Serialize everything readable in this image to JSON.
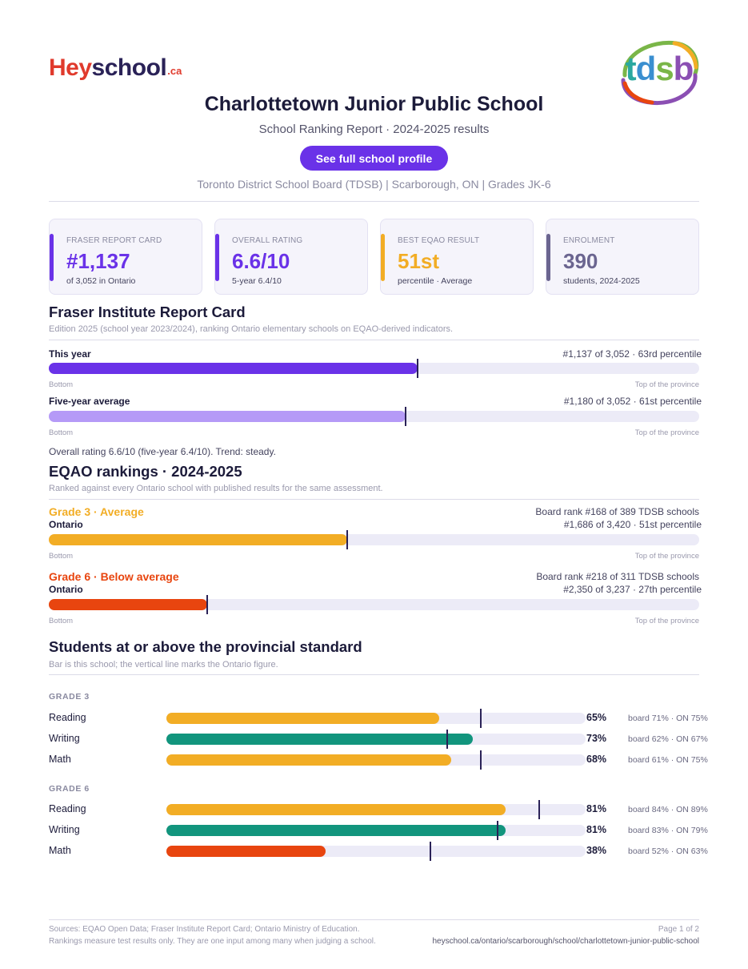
{
  "brand": {
    "hey": "Hey",
    "school": "school",
    "ca": ".ca"
  },
  "board_logo": {
    "t": "t",
    "d": "d",
    "s": "s",
    "b": "b"
  },
  "colors": {
    "accent": "#6a32e8",
    "purple_light": "#b59af7",
    "gold": "#f2ad25",
    "orange": "#e8450f",
    "teal": "#12957d",
    "slate": "#6b6590"
  },
  "header": {
    "title": "Charlottetown Junior Public School",
    "subtitle": "School Ranking Report  ·  2024-2025 results",
    "button": "See full school profile",
    "meta": "Toronto District School Board (TDSB)  |  Scarborough, ON  |  Grades JK-6"
  },
  "cards": [
    {
      "label": "FRASER REPORT CARD",
      "value": "#1,137",
      "sub": "of 3,052 in Ontario"
    },
    {
      "label": "OVERALL RATING",
      "value": "6.6/10",
      "sub": "5-year 6.4/10"
    },
    {
      "label": "BEST EQAO RESULT",
      "value": "51st",
      "sub": "percentile  ·  Average"
    },
    {
      "label": "ENROLMENT",
      "value": "390",
      "sub": "students, 2024-2025"
    }
  ],
  "fraser": {
    "heading": "Fraser Institute Report Card",
    "note": "Edition 2025 (school year 2023/2024), ranking Ontario elementary schools on EQAO-derived indicators.",
    "rows": [
      {
        "label": "This year",
        "detail": "#1,137 of 3,052  ·  63rd percentile",
        "percentile": 63
      },
      {
        "label": "Five-year average",
        "detail": "#1,180 of 3,052  ·  61st percentile",
        "percentile": 61
      }
    ],
    "bottom": "Bottom",
    "top": "Top of the province",
    "summary": "Overall rating 6.6/10 (five-year 6.4/10). Trend: steady."
  },
  "eqao": {
    "heading": "EQAO rankings  ·  2024-2025",
    "note": "Ranked against every Ontario school with published results for the same assessment.",
    "grades": [
      {
        "title": "Grade 3  ·  Average",
        "board_rank": "Board rank #168 of 389 TDSB schools",
        "scope": "Ontario",
        "detail": "#1,686 of 3,420  ·  51st percentile",
        "percentile": 51
      },
      {
        "title": "Grade 6  ·  Below average",
        "board_rank": "Board rank #218 of 311 TDSB schools",
        "scope": "Ontario",
        "detail": "#2,350 of 3,237  ·  27th percentile",
        "percentile": 27
      }
    ],
    "bottom": "Bottom",
    "top": "Top of the province"
  },
  "standard": {
    "heading": "Students at or above the provincial standard",
    "note": "Bar is this school; the vertical line marks the Ontario figure.",
    "groups": [
      {
        "caption": "GRADE 3",
        "rows": [
          {
            "subject": "Reading",
            "pct": "65%",
            "value": 65,
            "ontario": 75,
            "cmp": "board 71%  ·  ON 75%"
          },
          {
            "subject": "Writing",
            "pct": "73%",
            "value": 73,
            "ontario": 67,
            "cmp": "board 62%  ·  ON 67%"
          },
          {
            "subject": "Math",
            "pct": "68%",
            "value": 68,
            "ontario": 75,
            "cmp": "board 61%  ·  ON 75%"
          }
        ]
      },
      {
        "caption": "GRADE 6",
        "rows": [
          {
            "subject": "Reading",
            "pct": "81%",
            "value": 81,
            "ontario": 89,
            "cmp": "board 84%  ·  ON 89%"
          },
          {
            "subject": "Writing",
            "pct": "81%",
            "value": 81,
            "ontario": 79,
            "cmp": "board 83%  ·  ON 79%"
          },
          {
            "subject": "Math",
            "pct": "38%",
            "value": 38,
            "ontario": 63,
            "cmp": "board 52%  ·  ON 63%"
          }
        ]
      }
    ]
  },
  "footer": {
    "sources": "Sources: EQAO Open Data; Fraser Institute Report Card; Ontario Ministry of Education.",
    "disclaimer": "Rankings measure test results only. They are one input among many when judging a school.",
    "page": "Page 1 of 2",
    "url": "heyschool.ca/ontario/scarborough/school/charlottetown-junior-public-school"
  }
}
